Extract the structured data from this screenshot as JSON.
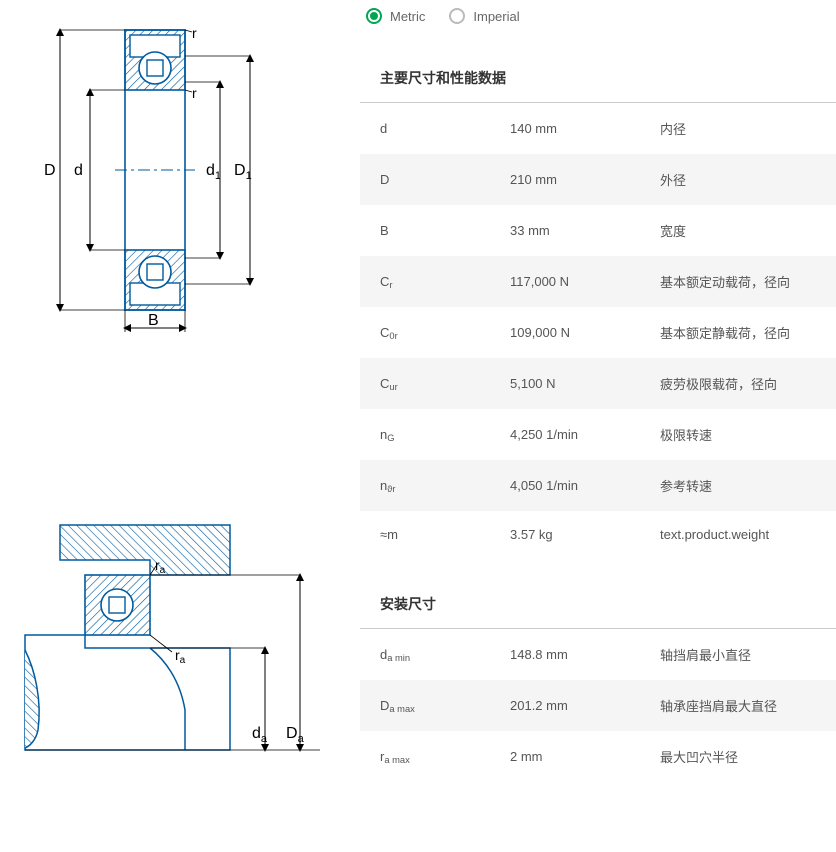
{
  "units": {
    "metric_label": "Metric",
    "imperial_label": "Imperial",
    "selected": "metric"
  },
  "colors": {
    "accent": "#00a651",
    "diagram_stroke": "#005a9e",
    "diagram_hatch": "#005a9e",
    "text": "#333333",
    "muted": "#555555",
    "alt_row": "#f5f5f5",
    "divider": "#cccccc"
  },
  "sections": [
    {
      "title": "主要尺寸和性能数据",
      "rows": [
        {
          "symbol_html": "d",
          "value": "140 mm",
          "desc": "内径"
        },
        {
          "symbol_html": "D",
          "value": "210 mm",
          "desc": "外径"
        },
        {
          "symbol_html": "B",
          "value": "33 mm",
          "desc": "宽度"
        },
        {
          "symbol_html": "C<sub>r</sub>",
          "value": "117,000 N",
          "desc": "基本额定动载荷，径向"
        },
        {
          "symbol_html": "C<sub>0r</sub>",
          "value": "109,000 N",
          "desc": "基本额定静载荷，径向"
        },
        {
          "symbol_html": "C<sub>ur</sub>",
          "value": "5,100 N",
          "desc": "疲劳极限载荷，径向"
        },
        {
          "symbol_html": "n<sub>G</sub>",
          "value": "4,250 1/min",
          "desc": "极限转速"
        },
        {
          "symbol_html": "n<sub>ϑr</sub>",
          "value": "4,050 1/min",
          "desc": "参考转速"
        },
        {
          "symbol_html": "≈m",
          "value": "3.57 kg",
          "desc": "text.product.weight"
        }
      ]
    },
    {
      "title": "安装尺寸",
      "rows": [
        {
          "symbol_html": "d<sub>a min</sub>",
          "value": "148.8 mm",
          "desc": "轴挡肩最小直径"
        },
        {
          "symbol_html": "D<sub>a max</sub>",
          "value": "201.2 mm",
          "desc": "轴承座挡肩最大直径"
        },
        {
          "symbol_html": "r<sub>a max</sub>",
          "value": "2 mm",
          "desc": "最大凹穴半径"
        }
      ]
    }
  ],
  "diagram1": {
    "labels": {
      "D": "D",
      "d": "d",
      "d1": "d",
      "D1": "D",
      "B": "B",
      "r_top": "r",
      "r_bot": "r"
    },
    "sub": {
      "d1": "1",
      "D1": "1"
    }
  },
  "diagram2": {
    "labels": {
      "ra_top": "r",
      "ra_bot": "r",
      "da": "d",
      "Da": "D"
    },
    "sub": {
      "ra": "a",
      "da": "a",
      "Da": "a"
    }
  }
}
